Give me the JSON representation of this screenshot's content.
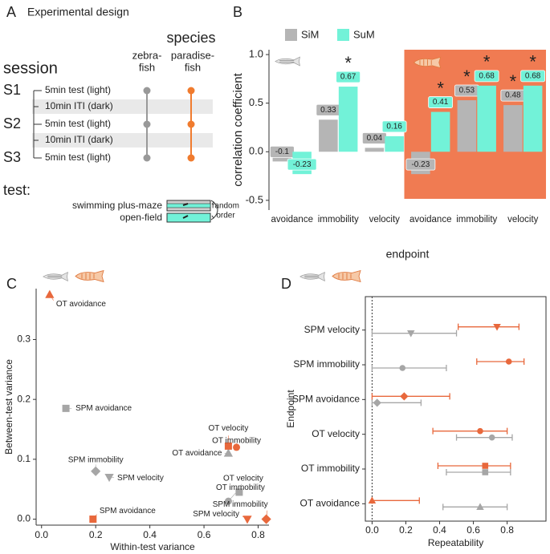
{
  "diagram": {
    "label": "A",
    "title": "Experimental design",
    "species_heading": "species",
    "species": [
      [
        "zebra-",
        "fish"
      ],
      [
        "paradise-",
        "fish"
      ]
    ],
    "session_heading": "session",
    "sessions": [
      {
        "name": "S1",
        "test": "5min test (light)"
      },
      {
        "name": "S2",
        "test": "5min test (light)"
      },
      {
        "name": "S3",
        "test": "5min test (light)"
      }
    ],
    "intervals": [
      "10min ITI (dark)",
      "10min ITI (dark)"
    ],
    "test_heading": "test:",
    "tests": [
      "swimming plus-maze",
      "open-field"
    ],
    "order_note": [
      "random",
      "order"
    ]
  },
  "chart_data": [
    {
      "type": "bar",
      "label": "B",
      "xlabel": "endpoint",
      "ylabel": "correlation coefficient",
      "categories": [
        "avoidance",
        "immobility",
        "velocity",
        "avoidance",
        "immobility",
        "velocity"
      ],
      "ylim": [
        -0.6,
        1.05
      ],
      "yticks": [
        -0.5,
        {
          "value": 0,
          "label": "0.0"
        },
        0.5,
        {
          "value": 1,
          "label": "1.0"
        }
      ],
      "legend": "top-left",
      "highlight_color": "#f07b52",
      "series": [
        {
          "name": "SiM",
          "color": "#b5b5b5",
          "values": [
            -0.1,
            0.33,
            0.04,
            -0.23,
            0.53,
            0.48
          ],
          "annotations": [
            null,
            null,
            null,
            null,
            "*",
            "*"
          ]
        },
        {
          "name": "SuM",
          "color": "#72f2d8",
          "values": [
            -0.23,
            0.67,
            0.16,
            0.41,
            0.68,
            0.68
          ],
          "annotations": [
            null,
            "*",
            null,
            "*",
            "*",
            "*"
          ]
        }
      ]
    },
    {
      "type": "scatter",
      "label": "C",
      "xlabel": "Within-test variance",
      "ylabel": "Between-test variance",
      "xlim": [
        -0.02,
        0.84
      ],
      "xticks": [
        {
          "value": 0,
          "label": "0.0"
        },
        0.2,
        0.4,
        0.6,
        0.8
      ],
      "ylim": [
        -0.01,
        0.385
      ],
      "yticks": [
        {
          "value": 0,
          "label": "0.0"
        },
        0.1,
        0.2,
        0.3
      ],
      "series": [
        {
          "color": "#a6a6a6",
          "x": [
            0.09,
            0.2,
            0.25,
            0.69,
            0.73,
            0.69
          ],
          "values": [
            0.185,
            0.08,
            0.07,
            0.11,
            0.045,
            0.03
          ],
          "labels": [
            "SPM avoidance",
            "SPM immobility",
            "SPM velocity",
            "OT avoidance",
            "OT velocity",
            "OT immobility"
          ],
          "markers": [
            "square",
            "diamond",
            "triangle-down",
            "triangle-up",
            "square",
            "circle"
          ]
        },
        {
          "color": "#e8683c",
          "x": [
            0.03,
            0.69,
            0.72,
            0.19,
            0.76,
            0.83
          ],
          "values": [
            0.375,
            0.122,
            0.12,
            0,
            0,
            0
          ],
          "labels": [
            "OT avoidance",
            "OT velocity",
            "OT immobility",
            "SPM avoidance",
            "SPM velocity",
            "SPM immobility"
          ],
          "markers": [
            "triangle-up",
            "square",
            "circle",
            "square",
            "triangle-down",
            "diamond"
          ]
        }
      ]
    },
    {
      "type": "dot",
      "label": "D",
      "xlabel": "Repeatability",
      "ylabel": "Endpoint",
      "categories": [
        "SPM velocity",
        "SPM immobility",
        "SPM avoidance",
        "OT velocity",
        "OT immobility",
        "OT avoidance"
      ],
      "markers": [
        "triangle-down",
        "circle",
        "diamond",
        "circle",
        "square",
        "triangle-up"
      ],
      "xlim": [
        -0.04,
        1.03
      ],
      "xticks": [
        {
          "value": 0,
          "label": "0.0"
        },
        0.2,
        0.4,
        0.6,
        0.8
      ],
      "series": [
        {
          "color": "#a6a6a6",
          "values": [
            0.23,
            0.18,
            0.03,
            0.71,
            0.67,
            0.64
          ],
          "lower": [
            0,
            0,
            0,
            0.5,
            0.44,
            0.42
          ],
          "upper": [
            0.5,
            0.44,
            0.29,
            0.83,
            0.82,
            0.8
          ]
        },
        {
          "color": "#e8683c",
          "values": [
            0.74,
            0.81,
            0.19,
            0.64,
            0.67,
            0
          ],
          "lower": [
            0.51,
            0.62,
            0,
            0.36,
            0.39,
            0
          ],
          "upper": [
            0.87,
            0.9,
            0.46,
            0.8,
            0.82,
            0.28
          ]
        }
      ]
    }
  ]
}
